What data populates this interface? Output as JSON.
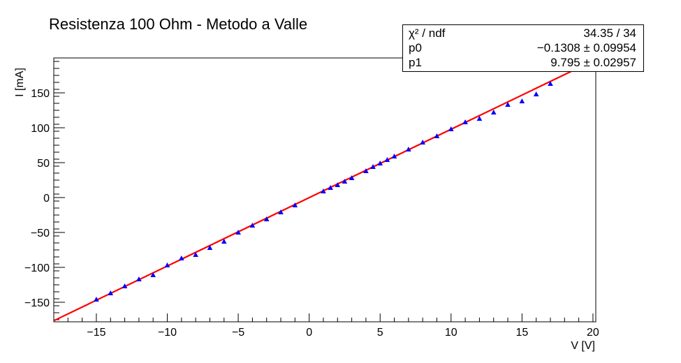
{
  "title": "Resistenza 100 Ohm - Metodo a  Valle",
  "stats": {
    "r1": {
      "key": "χ² / ndf",
      "value": "34.35 / 34"
    },
    "r2": {
      "key": "p0",
      "value": "−0.1308 ± 0.09954"
    },
    "r3": {
      "key": "p1",
      "value": "9.795 ± 0.02957"
    }
  },
  "chart_data": {
    "type": "scatter",
    "title": "Resistenza 100 Ohm - Metodo a  Valle",
    "xlabel": "V [V]",
    "ylabel": "I [mA]",
    "xlim": [
      -18,
      20.2
    ],
    "ylim": [
      -178,
      200
    ],
    "xticks": [
      -15,
      -10,
      -5,
      0,
      5,
      10,
      15,
      20
    ],
    "xtick_labels": [
      "−15",
      "−10",
      "−5",
      "0",
      "5",
      "10",
      "15",
      "20"
    ],
    "yticks": [
      -150,
      -100,
      -50,
      0,
      50,
      100,
      150
    ],
    "ytick_labels": [
      "−150",
      "−100",
      "−50",
      "0",
      "50",
      "100",
      "150"
    ],
    "series": [
      {
        "marker": "triangle",
        "color": "#0000ff",
        "points": [
          [
            -15,
            -146
          ],
          [
            -14,
            -137
          ],
          [
            -13,
            -127
          ],
          [
            -12,
            -117
          ],
          [
            -11,
            -111
          ],
          [
            -10,
            -97
          ],
          [
            -9,
            -87
          ],
          [
            -8,
            -82
          ],
          [
            -7,
            -72
          ],
          [
            -6,
            -63
          ],
          [
            -5,
            -50
          ],
          [
            -4,
            -40
          ],
          [
            -3,
            -31
          ],
          [
            -2,
            -21
          ],
          [
            -1,
            -11
          ],
          [
            1,
            9
          ],
          [
            1.5,
            14
          ],
          [
            2,
            18
          ],
          [
            2.5,
            23
          ],
          [
            3,
            28
          ],
          [
            4,
            38
          ],
          [
            4.5,
            44
          ],
          [
            5,
            49
          ],
          [
            5.5,
            54
          ],
          [
            6,
            59
          ],
          [
            7,
            69
          ],
          [
            8,
            79
          ],
          [
            9,
            88
          ],
          [
            10,
            98
          ],
          [
            11,
            108
          ],
          [
            12,
            113
          ],
          [
            13,
            122
          ],
          [
            14,
            133
          ],
          [
            15,
            138
          ],
          [
            16,
            148
          ],
          [
            17,
            163
          ]
        ]
      },
      {
        "type": "line",
        "color": "#ff0000",
        "x": [
          -18,
          18.8
        ],
        "y": [
          -176.44,
          184.02
        ]
      }
    ]
  }
}
